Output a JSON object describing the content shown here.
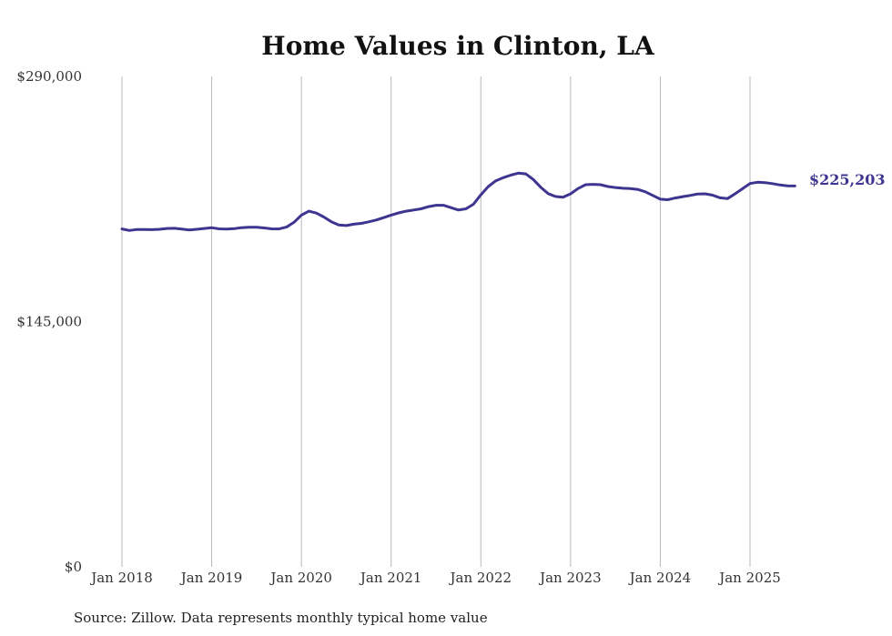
{
  "chart_data": {
    "type": "line",
    "title": "Home Values in Clinton, LA",
    "xlabel": "",
    "ylabel": "",
    "ylim": [
      0,
      290000
    ],
    "y_ticks": [
      "$290,000",
      "$145,000",
      "$0"
    ],
    "y_tick_values": [
      290000,
      145000,
      0
    ],
    "x_ticks": [
      "Jan 2018",
      "Jan 2019",
      "Jan 2020",
      "Jan 2021",
      "Jan 2022",
      "Jan 2023",
      "Jan 2024",
      "Jan 2025"
    ],
    "x_tick_values": [
      2018,
      2019,
      2020,
      2021,
      2022,
      2023,
      2024,
      2025
    ],
    "xlim": [
      2018,
      2025.5
    ],
    "grid": "vertical",
    "legend": "none",
    "color": "#3d3590",
    "end_label": "$225,203",
    "series": [
      {
        "x": [
          2018.0,
          2018.0833,
          2018.1667,
          2018.25,
          2018.3333,
          2018.4167,
          2018.5,
          2018.5833,
          2018.6667,
          2018.75,
          2018.8333,
          2018.9167,
          2019.0,
          2019.0833,
          2019.1667,
          2019.25,
          2019.3333,
          2019.4167,
          2019.5,
          2019.5833,
          2019.6667,
          2019.75,
          2019.8333,
          2019.9167,
          2020.0,
          2020.0833,
          2020.1667,
          2020.25,
          2020.3333,
          2020.4167,
          2020.5,
          2020.5833,
          2020.6667,
          2020.75,
          2020.8333,
          2020.9167,
          2021.0,
          2021.0833,
          2021.1667,
          2021.25,
          2021.3333,
          2021.4167,
          2021.5,
          2021.5833,
          2021.6667,
          2021.75,
          2021.8333,
          2021.9167,
          2022.0,
          2022.0833,
          2022.1667,
          2022.25,
          2022.3333,
          2022.4167,
          2022.5,
          2022.5833,
          2022.6667,
          2022.75,
          2022.8333,
          2022.9167,
          2023.0,
          2023.0833,
          2023.1667,
          2023.25,
          2023.3333,
          2023.4167,
          2023.5,
          2023.5833,
          2023.6667,
          2023.75,
          2023.8333,
          2023.9167,
          2024.0,
          2024.0833,
          2024.1667,
          2024.25,
          2024.3333,
          2024.4167,
          2024.5,
          2024.5833,
          2024.6667,
          2024.75,
          2024.8333,
          2024.9167,
          2025.0,
          2025.0833,
          2025.1667,
          2025.25,
          2025.3333,
          2025.4167,
          2025.5
        ],
        "y": [
          199800,
          198900,
          199500,
          199500,
          199400,
          199600,
          200100,
          200200,
          199700,
          199200,
          199600,
          200100,
          200500,
          199900,
          199700,
          200000,
          200600,
          200800,
          200800,
          200400,
          199900,
          199800,
          200900,
          203700,
          208000,
          210300,
          209200,
          206900,
          204100,
          202200,
          201800,
          202600,
          203100,
          204000,
          205100,
          206500,
          208000,
          209300,
          210300,
          211000,
          211700,
          213000,
          213800,
          213800,
          212400,
          211000,
          211700,
          214400,
          220000,
          224900,
          228300,
          230100,
          231600,
          232800,
          232400,
          229100,
          224500,
          220700,
          219000,
          218600,
          220600,
          223700,
          226000,
          226200,
          226000,
          224900,
          224300,
          223900,
          223700,
          223200,
          221800,
          219600,
          217400,
          217100,
          218100,
          218900,
          219600,
          220500,
          220600,
          219800,
          218200,
          217800,
          220600,
          223600,
          226700,
          227400,
          227200,
          226600,
          225800,
          225300,
          225203
        ]
      }
    ]
  },
  "footer": {
    "source": "Source: Zillow. Data represents monthly typical home value"
  }
}
